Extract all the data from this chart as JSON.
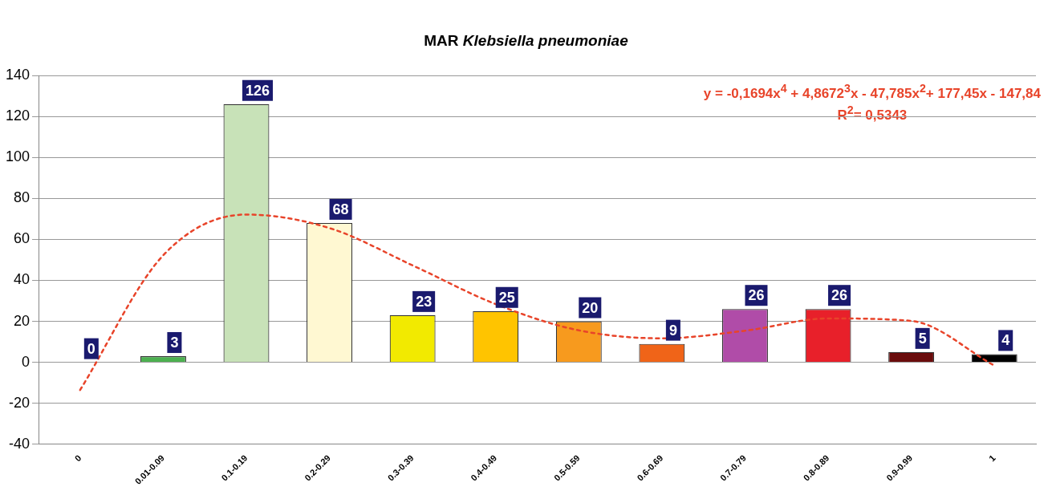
{
  "chart_data": {
    "type": "bar",
    "title": "MAR Klebsiella pneumoniae",
    "categories": [
      "0",
      "0.01-0.09",
      "0.1-0.19",
      "0.2-0.29",
      "0.3-0.39",
      "0.4-0.49",
      "0.5-0.59",
      "0.6-0.69",
      "0.7-0.79",
      "0.8-0.89",
      "0.9-0.99",
      "1"
    ],
    "series": [
      {
        "data_labels": true,
        "values": [
          0,
          3,
          126,
          68,
          23,
          25,
          20,
          9,
          26,
          26,
          5,
          4
        ],
        "colors": [
          "#1a1a6e",
          "#4cb050",
          "#c8e2b8",
          "#fff8d2",
          "#f2ea00",
          "#ffc400",
          "#f79a1e",
          "#f06418",
          "#b04ca8",
          "#e8202a",
          "#6a0c0c",
          "#000000"
        ]
      },
      {
        "type": "line",
        "color": "#e8442a",
        "line_style": "dashed",
        "marker": "none",
        "x": [
          "0",
          "0.01-0.09",
          "0.1-0.19",
          "0.2-0.29",
          "0.3-0.39",
          "0.4-0.49",
          "0.5-0.59",
          "0.6-0.69",
          "0.7-0.79",
          "0.8-0.89",
          "0.9-0.99",
          "1"
        ],
        "values": [
          -13.5,
          52.2,
          72.1,
          65.5,
          47.3,
          28.4,
          15.6,
          11.7,
          15.4,
          21.4,
          20.2,
          -1.6
        ]
      }
    ],
    "ylim": [
      -40,
      140
    ],
    "yticks": [
      -40,
      -20,
      0,
      20,
      40,
      60,
      80,
      100,
      120,
      140
    ],
    "grid": "y",
    "legend": false,
    "annotations": [
      "y = -0,1694x$^{4}$ + 4,8672$^{3}$x - 47,785x$^{2}$+ 177,45x - 147,84",
      "R$^{2}$= 0,5343"
    ]
  }
}
